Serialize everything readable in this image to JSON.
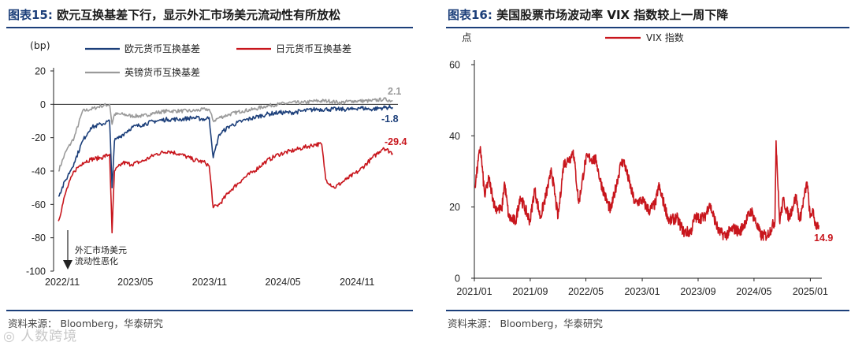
{
  "left": {
    "title_label": "图表15:",
    "title_text": "欧元互换基差下行，显示外汇市场美元流动性有所放松",
    "source": "资料来源： Bloomberg，华泰研究"
  },
  "right": {
    "title_label": "图表16:",
    "title_text": "美国股票市场波动率 VIX 指数较上一周下降",
    "source": "资料来源： Bloomberg，华泰研究"
  },
  "watermark": "◎ 人数跨境",
  "chart_data": [
    {
      "type": "line",
      "unit": "(bp)",
      "ylim": [
        -100,
        20
      ],
      "yticks": [
        20,
        0,
        -20,
        -40,
        -60,
        -80,
        -100
      ],
      "xticks": [
        "2022/11",
        "2023/05",
        "2023/11",
        "2024/05",
        "2024/11"
      ],
      "annotation": "外汇市场美元流动性恶化",
      "series": [
        {
          "name": "欧元货币互换基差",
          "color": "#1c3f7a",
          "end_label": "-1.8",
          "points": [
            [
              "2022-11-01",
              -55
            ],
            [
              "2022-11-20",
              -45
            ],
            [
              "2022-12-10",
              -35
            ],
            [
              "2022-12-31",
              -22
            ],
            [
              "2023-01-20",
              -14
            ],
            [
              "2023-02-15",
              -12
            ],
            [
              "2023-03-08",
              -10
            ],
            [
              "2023-03-14",
              -50
            ],
            [
              "2023-03-20",
              -22
            ],
            [
              "2023-04-10",
              -18
            ],
            [
              "2023-05-01",
              -14
            ],
            [
              "2023-05-30",
              -12
            ],
            [
              "2023-06-30",
              -10
            ],
            [
              "2023-07-31",
              -9
            ],
            [
              "2023-08-31",
              -9
            ],
            [
              "2023-09-30",
              -8
            ],
            [
              "2023-10-31",
              -9
            ],
            [
              "2023-11-10",
              -8
            ],
            [
              "2023-11-20",
              -32
            ],
            [
              "2023-12-05",
              -18
            ],
            [
              "2023-12-31",
              -13
            ],
            [
              "2024-01-31",
              -10
            ],
            [
              "2024-02-29",
              -8
            ],
            [
              "2024-03-31",
              -6
            ],
            [
              "2024-04-30",
              -5
            ],
            [
              "2024-05-31",
              -5
            ],
            [
              "2024-06-30",
              -4
            ],
            [
              "2024-07-31",
              -3
            ],
            [
              "2024-08-31",
              -3
            ],
            [
              "2024-09-30",
              -3
            ],
            [
              "2024-10-31",
              -3
            ],
            [
              "2024-11-15",
              -2
            ],
            [
              "2024-12-15",
              -3
            ],
            [
              "2025-01-15",
              -2
            ],
            [
              "2025-02-07",
              -1.8
            ]
          ]
        },
        {
          "name": "日元货币互换基差",
          "color": "#c8161d",
          "end_label": "-29.4",
          "points": [
            [
              "2022-11-01",
              -70
            ],
            [
              "2022-11-20",
              -52
            ],
            [
              "2022-12-10",
              -40
            ],
            [
              "2022-12-31",
              -35
            ],
            [
              "2023-01-20",
              -33
            ],
            [
              "2023-02-15",
              -32
            ],
            [
              "2023-03-08",
              -30
            ],
            [
              "2023-03-14",
              -77
            ],
            [
              "2023-03-20",
              -40
            ],
            [
              "2023-04-10",
              -35
            ],
            [
              "2023-05-01",
              -36
            ],
            [
              "2023-05-30",
              -34
            ],
            [
              "2023-06-30",
              -30
            ],
            [
              "2023-07-31",
              -28
            ],
            [
              "2023-08-31",
              -30
            ],
            [
              "2023-09-30",
              -33
            ],
            [
              "2023-10-31",
              -35
            ],
            [
              "2023-11-10",
              -37
            ],
            [
              "2023-11-20",
              -62
            ],
            [
              "2023-12-05",
              -60
            ],
            [
              "2023-12-31",
              -52
            ],
            [
              "2024-01-31",
              -45
            ],
            [
              "2024-02-29",
              -40
            ],
            [
              "2024-03-31",
              -34
            ],
            [
              "2024-04-30",
              -30
            ],
            [
              "2024-05-31",
              -28
            ],
            [
              "2024-06-30",
              -26
            ],
            [
              "2024-07-31",
              -24
            ],
            [
              "2024-08-15",
              -24
            ],
            [
              "2024-08-25",
              -45
            ],
            [
              "2024-09-15",
              -50
            ],
            [
              "2024-10-15",
              -45
            ],
            [
              "2024-11-15",
              -40
            ],
            [
              "2024-12-15",
              -33
            ],
            [
              "2025-01-15",
              -26
            ],
            [
              "2025-02-07",
              -29.4
            ]
          ]
        },
        {
          "name": "英镑货币互换基差",
          "color": "#9a9a9a",
          "end_label": "2.1",
          "points": [
            [
              "2022-11-01",
              -40
            ],
            [
              "2022-11-20",
              -28
            ],
            [
              "2022-12-10",
              -20
            ],
            [
              "2022-12-31",
              -4
            ],
            [
              "2023-01-20",
              -3
            ],
            [
              "2023-02-15",
              -1
            ],
            [
              "2023-03-08",
              0
            ],
            [
              "2023-03-14",
              -12
            ],
            [
              "2023-03-20",
              -6
            ],
            [
              "2023-04-10",
              -6
            ],
            [
              "2023-05-01",
              -7
            ],
            [
              "2023-05-30",
              -7
            ],
            [
              "2023-06-30",
              -5
            ],
            [
              "2023-07-31",
              -4
            ],
            [
              "2023-08-31",
              -4
            ],
            [
              "2023-09-30",
              -4
            ],
            [
              "2023-10-31",
              -3
            ],
            [
              "2023-11-10",
              -3
            ],
            [
              "2023-11-20",
              -10
            ],
            [
              "2023-12-05",
              -8
            ],
            [
              "2023-12-31",
              -6
            ],
            [
              "2024-01-31",
              -4
            ],
            [
              "2024-02-29",
              -3
            ],
            [
              "2024-03-31",
              -1
            ],
            [
              "2024-04-30",
              0
            ],
            [
              "2024-05-31",
              1
            ],
            [
              "2024-06-30",
              1
            ],
            [
              "2024-07-31",
              2
            ],
            [
              "2024-08-31",
              2
            ],
            [
              "2024-09-30",
              1
            ],
            [
              "2024-10-31",
              2
            ],
            [
              "2024-11-15",
              2
            ],
            [
              "2024-12-15",
              2
            ],
            [
              "2025-01-15",
              3
            ],
            [
              "2025-02-07",
              2.1
            ]
          ]
        }
      ]
    },
    {
      "type": "line",
      "unit": "点",
      "ylim": [
        0,
        60
      ],
      "yticks": [
        60,
        40,
        20,
        0
      ],
      "xticks": [
        "2021/01",
        "2021/09",
        "2022/05",
        "2023/01",
        "2023/09",
        "2024/05",
        "2025/01"
      ],
      "series": [
        {
          "name": "VIX 指数",
          "color": "#c8161d",
          "end_label": "14.9",
          "points": [
            [
              "2021-01-04",
              26
            ],
            [
              "2021-01-27",
              37
            ],
            [
              "2021-02-15",
              23
            ],
            [
              "2021-03-05",
              28
            ],
            [
              "2021-03-31",
              20
            ],
            [
              "2021-04-30",
              19
            ],
            [
              "2021-05-12",
              27
            ],
            [
              "2021-05-31",
              17
            ],
            [
              "2021-06-30",
              16
            ],
            [
              "2021-07-19",
              23
            ],
            [
              "2021-08-31",
              16
            ],
            [
              "2021-09-20",
              25
            ],
            [
              "2021-10-15",
              17
            ],
            [
              "2021-11-26",
              28
            ],
            [
              "2021-12-01",
              31
            ],
            [
              "2021-12-31",
              17
            ],
            [
              "2022-01-24",
              32
            ],
            [
              "2022-02-24",
              34
            ],
            [
              "2022-03-07",
              36
            ],
            [
              "2022-03-31",
              21
            ],
            [
              "2022-04-29",
              33
            ],
            [
              "2022-05-09",
              34
            ],
            [
              "2022-06-16",
              33
            ],
            [
              "2022-06-30",
              28
            ],
            [
              "2022-07-29",
              22
            ],
            [
              "2022-08-17",
              19
            ],
            [
              "2022-09-30",
              32
            ],
            [
              "2022-10-12",
              33
            ],
            [
              "2022-11-30",
              21
            ],
            [
              "2022-12-30",
              22
            ],
            [
              "2023-01-31",
              19
            ],
            [
              "2023-02-28",
              21
            ],
            [
              "2023-03-13",
              26
            ],
            [
              "2023-04-28",
              16
            ],
            [
              "2023-05-31",
              17
            ],
            [
              "2023-06-30",
              13
            ],
            [
              "2023-07-31",
              13
            ],
            [
              "2023-08-18",
              17
            ],
            [
              "2023-09-29",
              17
            ],
            [
              "2023-10-20",
              21
            ],
            [
              "2023-11-30",
              13
            ],
            [
              "2023-12-29",
              12
            ],
            [
              "2024-01-31",
              14
            ],
            [
              "2024-02-29",
              13
            ],
            [
              "2024-04-19",
              19
            ],
            [
              "2024-05-31",
              12
            ],
            [
              "2024-06-28",
              12
            ],
            [
              "2024-07-31",
              16
            ],
            [
              "2024-08-05",
              38.6
            ],
            [
              "2024-08-20",
              16
            ],
            [
              "2024-09-06",
              22
            ],
            [
              "2024-09-30",
              17
            ],
            [
              "2024-10-31",
              23
            ],
            [
              "2024-11-15",
              16
            ],
            [
              "2024-12-18",
              27
            ],
            [
              "2024-12-31",
              17
            ],
            [
              "2025-01-10",
              19
            ],
            [
              "2025-01-24",
              15
            ],
            [
              "2025-02-07",
              14.9
            ]
          ]
        }
      ]
    }
  ]
}
